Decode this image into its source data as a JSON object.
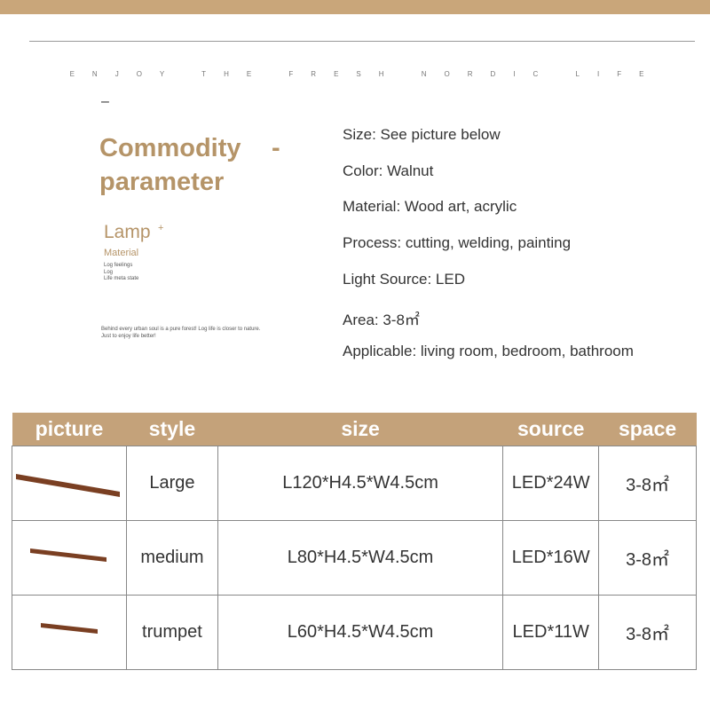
{
  "tagline": "ENJOY THE FRESH NORDIC LIFE",
  "left_panel": {
    "dash": "–",
    "heading": [
      "Commodity",
      "-",
      "parameter"
    ],
    "lamp": "Lamp",
    "lamp_sup": "+",
    "material": "Material",
    "small_lines": [
      "Log feelings",
      "Log",
      "Life meta state"
    ],
    "slogan": [
      "Behind every urban soul is a pure forest! Log life is closer to nature.",
      "Just to enjoy life better!"
    ]
  },
  "specs": [
    "Size: See picture below",
    "Color: Walnut",
    "Material: Wood art, acrylic",
    "Process: cutting, welding, painting",
    "Light Source: LED",
    "Area: 3-8㎡",
    "Applicable: living room, bedroom, bathroom"
  ],
  "table": {
    "headers": [
      "picture",
      "style",
      "size",
      "source",
      "space"
    ],
    "rows": [
      [
        "Large",
        "L120*H4.5*W4.5cm",
        "LED*24W",
        "3-8㎡"
      ],
      [
        "medium",
        "L80*H4.5*W4.5cm",
        "LED*16W",
        "3-8㎡"
      ],
      [
        "trumpet",
        "L60*H4.5*W4.5cm",
        "LED*11W",
        "3-8㎡"
      ]
    ]
  }
}
